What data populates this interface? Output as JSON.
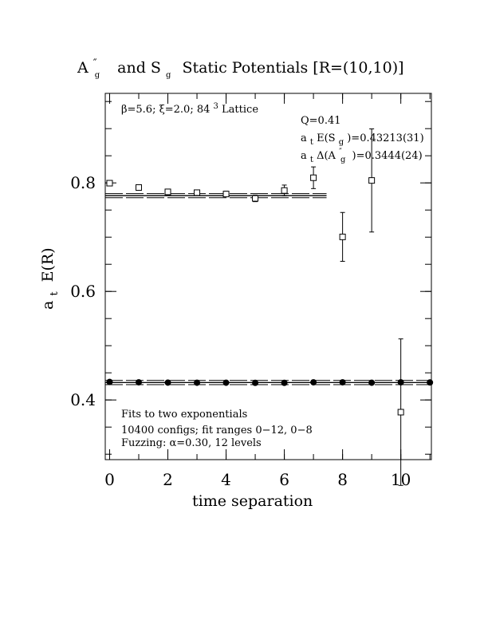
{
  "chart_data": {
    "type": "scatter",
    "title": {
      "a_main": "A",
      "a_super": "″",
      "a_sub": "g",
      "mid": "and S",
      "s_sub": "g",
      "end": "Static Potentials [R=(10,10)]"
    },
    "xlabel": "time separation",
    "ylabel_main": "a",
    "ylabel_sub": "t",
    "ylabel_rest": "E(R)",
    "xlim": [
      -0.15,
      11.05
    ],
    "ylim": [
      0.29,
      0.965
    ],
    "xticks": [
      0,
      2,
      4,
      6,
      8,
      10
    ],
    "yticks": [
      0.4,
      0.6,
      0.8
    ],
    "xtick_labels": [
      "0",
      "2",
      "4",
      "6",
      "8",
      "10"
    ],
    "ytick_labels": [
      "0.4",
      "0.6",
      "0.8"
    ],
    "lattice_info": {
      "beta": "β=5.6; ξ=2.0; 84",
      "sup": "3",
      "rest": " Lattice"
    },
    "fit_info": {
      "q": "Q=0.41",
      "e_prefix": "a",
      "e_sub1": "t",
      "e_mid": "E(S",
      "e_sub2": "g",
      "e_value": ")=0.43213(31)",
      "d_prefix": "a",
      "d_sub1": "t",
      "d_mid": "Δ(A",
      "d_sup": "″",
      "d_sub2": "g",
      "d_value": ")=0.3444(24)"
    },
    "notes": [
      "Fits to two exponentials",
      "10400 configs; fit ranges 0−12, 0−8",
      "Fuzzing: α=0.30, 12 levels"
    ],
    "series": [
      {
        "marker": "filled-circle",
        "x": [
          0,
          1,
          2,
          3,
          4,
          5,
          6,
          7,
          8,
          9,
          10,
          11
        ],
        "y": [
          0.4332,
          0.4325,
          0.432,
          0.4318,
          0.4318,
          0.4315,
          0.4315,
          0.4325,
          0.4325,
          0.4318,
          0.4325,
          0.4322
        ],
        "yerr": [
          0.001,
          0.001,
          0.001,
          0.001,
          0.001,
          0.001,
          0.001,
          0.001,
          0.001,
          0.001,
          0.001,
          0.001
        ]
      },
      {
        "marker": "open-square",
        "x": [
          0,
          1,
          2,
          3,
          4,
          5,
          6,
          7,
          8,
          9,
          10
        ],
        "y": [
          0.7995,
          0.7915,
          0.7835,
          0.782,
          0.7795,
          0.7715,
          0.786,
          0.8095,
          0.7005,
          0.8045,
          0.3775
        ],
        "yerr": [
          0.002,
          0.003,
          0.004,
          0.004,
          0.005,
          0.006,
          0.01,
          0.02,
          0.045,
          0.095,
          0.135
        ]
      }
    ],
    "fit_bands": [
      {
        "center": 0.43213,
        "x_range": [
          -0.15,
          11.05
        ]
      },
      {
        "center": 0.7765,
        "x_range": [
          -0.15,
          7.45
        ]
      }
    ]
  }
}
